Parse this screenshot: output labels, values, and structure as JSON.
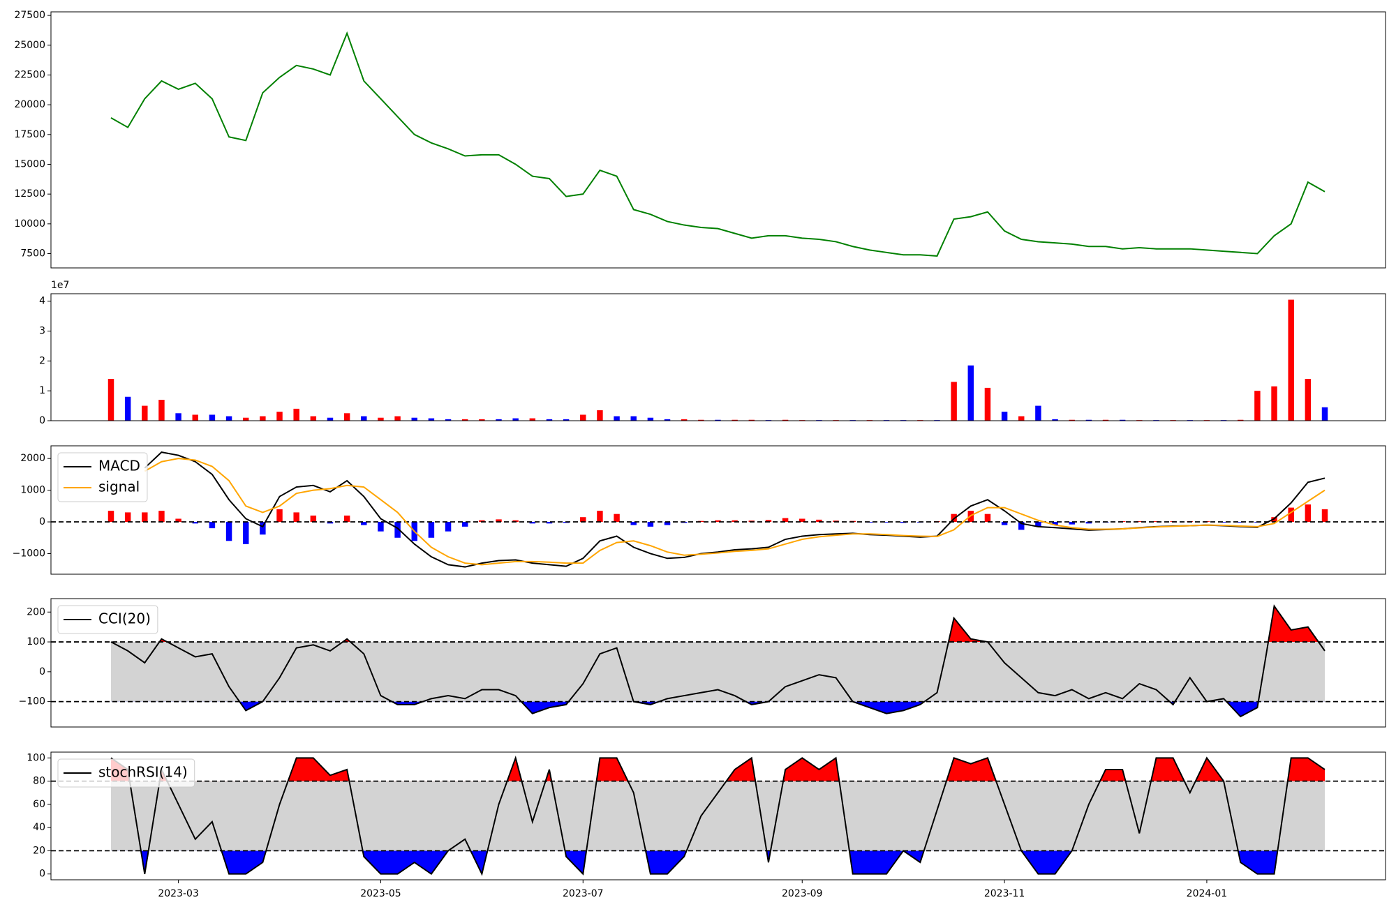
{
  "chart_data": [
    {
      "type": "line",
      "ylim": [
        6300,
        27800
      ],
      "yticks": [
        7500,
        10000,
        12500,
        15000,
        17500,
        20000,
        22500,
        25000,
        27500
      ],
      "series": [
        {
          "color": "green",
          "values": [
            18900,
            18100,
            20500,
            22000,
            21300,
            21800,
            20500,
            17300,
            17000,
            21000,
            22300,
            23300,
            23000,
            22500,
            26000,
            22000,
            20500,
            19000,
            17500,
            16800,
            16300,
            15700,
            15800,
            15800,
            15000,
            14000,
            13800,
            12300,
            12500,
            14500,
            14000,
            11200,
            10800,
            10200,
            9900,
            9700,
            9600,
            9200,
            8800,
            9000,
            9000,
            8800,
            8700,
            8500,
            8100,
            7800,
            7600,
            7400,
            7400,
            7300,
            10400,
            10600,
            11000,
            9400,
            8700,
            8500,
            8400,
            8300,
            8100,
            8100,
            7900,
            8000,
            7900,
            7900,
            7900,
            7800,
            7700,
            7600,
            7500,
            9000,
            10000,
            13500,
            12700
          ]
        }
      ]
    },
    {
      "type": "bar",
      "offset_label": "1e7",
      "ylim": [
        0,
        4.25
      ],
      "yticks": [
        0,
        1,
        2,
        3,
        4
      ],
      "series": [
        {
          "type": "bar",
          "color": "red",
          "values": [
            1.4,
            null,
            0.5,
            0.7,
            null,
            0.2,
            null,
            null,
            0.1,
            0.15,
            0.3,
            0.4,
            0.15,
            null,
            0.25,
            null,
            0.1,
            0.15,
            null,
            null,
            null,
            0.05,
            0.05,
            null,
            null,
            0.08,
            null,
            null,
            0.2,
            0.35,
            null,
            null,
            null,
            null,
            0.05,
            0.03,
            null,
            0.03,
            0.03,
            null,
            0.03,
            0.02,
            null,
            0.02,
            null,
            0.02,
            null,
            null,
            0.02,
            null,
            1.3,
            null,
            1.1,
            null,
            0.15,
            null,
            null,
            0.03,
            null,
            0.03,
            null,
            0.02,
            null,
            0.02,
            null,
            0.02,
            null,
            0.03,
            1.0,
            1.15,
            4.05,
            1.4,
            null
          ]
        },
        {
          "type": "bar",
          "color": "blue",
          "values": [
            null,
            0.8,
            null,
            null,
            0.25,
            null,
            0.2,
            0.15,
            null,
            null,
            null,
            null,
            null,
            0.1,
            null,
            0.15,
            null,
            null,
            0.1,
            0.08,
            0.05,
            null,
            null,
            0.05,
            0.08,
            null,
            0.05,
            0.05,
            null,
            null,
            0.15,
            0.15,
            0.1,
            0.05,
            null,
            null,
            0.03,
            null,
            null,
            0.02,
            null,
            null,
            0.02,
            null,
            0.02,
            null,
            0.02,
            0.02,
            null,
            0.02,
            null,
            1.85,
            null,
            0.3,
            null,
            0.5,
            0.05,
            null,
            0.03,
            null,
            0.03,
            null,
            0.02,
            null,
            0.02,
            null,
            0.02,
            null,
            null,
            null,
            null,
            null,
            0.45
          ]
        }
      ]
    },
    {
      "type": "line",
      "ylim": [
        -1650,
        2400
      ],
      "yticks": [
        {
          "value": -1000,
          "label": "−1000"
        },
        0,
        1000,
        2000
      ],
      "hlines": [
        0
      ],
      "legend": "upper left",
      "series": [
        {
          "type": "bar",
          "color": "red",
          "negative_color": "blue",
          "values": [
            350,
            300,
            300,
            350,
            100,
            -50,
            -200,
            -600,
            -700,
            -400,
            400,
            300,
            200,
            -50,
            200,
            -100,
            -300,
            -500,
            -600,
            -500,
            -300,
            -150,
            50,
            80,
            50,
            -50,
            -50,
            -30,
            150,
            350,
            250,
            -100,
            -150,
            -100,
            -30,
            30,
            50,
            50,
            40,
            60,
            120,
            100,
            70,
            40,
            30,
            -20,
            -20,
            -30,
            -20,
            20,
            250,
            350,
            250,
            -100,
            -250,
            -150,
            -100,
            -80,
            -50,
            -20,
            20,
            20,
            20,
            20,
            20,
            20,
            -20,
            -20,
            -20,
            150,
            450,
            550,
            400
          ]
        },
        {
          "name": "MACD",
          "color": "black",
          "values": [
            null,
            null,
            1700,
            2200,
            2100,
            1900,
            1500,
            700,
            100,
            -150,
            800,
            1100,
            1150,
            950,
            1300,
            800,
            100,
            -200,
            -700,
            -1100,
            -1350,
            -1420,
            -1300,
            -1220,
            -1200,
            -1300,
            -1350,
            -1400,
            -1150,
            -600,
            -450,
            -800,
            -1000,
            -1150,
            -1120,
            -1000,
            -950,
            -880,
            -850,
            -800,
            -550,
            -450,
            -400,
            -380,
            -360,
            -400,
            -420,
            -450,
            -480,
            -450,
            100,
            500,
            700,
            350,
            -50,
            -150,
            -180,
            -220,
            -260,
            -240,
            -220,
            -180,
            -150,
            -130,
            -120,
            -100,
            -120,
            -150,
            -170,
            100,
            600,
            1250,
            1380
          ]
        },
        {
          "name": "signal",
          "color": "orange",
          "values": [
            null,
            null,
            1600,
            1900,
            2000,
            1950,
            1750,
            1300,
            500,
            300,
            500,
            900,
            1000,
            1050,
            1150,
            1100,
            700,
            300,
            -300,
            -800,
            -1100,
            -1300,
            -1350,
            -1300,
            -1250,
            -1250,
            -1270,
            -1300,
            -1300,
            -900,
            -650,
            -600,
            -750,
            -950,
            -1050,
            -1020,
            -980,
            -930,
            -900,
            -850,
            -700,
            -550,
            -470,
            -420,
            -380,
            -380,
            -400,
            -430,
            -450,
            -460,
            -250,
            200,
            450,
            450,
            250,
            50,
            -100,
            -180,
            -230,
            -230,
            -220,
            -190,
            -160,
            -140,
            -120,
            -100,
            -110,
            -130,
            -150,
            -50,
            300,
            650,
            1000
          ]
        }
      ]
    },
    {
      "type": "band",
      "ylim": [
        -185,
        245
      ],
      "yticks": [
        {
          "value": -100,
          "label": "−100"
        },
        0,
        100,
        200
      ],
      "hlines": [
        100,
        -100
      ],
      "legend": "upper left",
      "band_color": "lightgray",
      "upper_color": "red",
      "lower_color": "blue",
      "series": [
        {
          "name": "CCI(20)",
          "color": "black",
          "values": [
            100,
            70,
            30,
            110,
            80,
            50,
            60,
            -50,
            -130,
            -100,
            -20,
            80,
            90,
            70,
            110,
            60,
            -80,
            -110,
            -110,
            -90,
            -80,
            -90,
            -60,
            -60,
            -80,
            -140,
            -120,
            -110,
            -40,
            60,
            80,
            -100,
            -110,
            -90,
            -80,
            -70,
            -60,
            -80,
            -110,
            -100,
            -50,
            -30,
            -10,
            -20,
            -100,
            -120,
            -140,
            -130,
            -110,
            -70,
            180,
            110,
            100,
            30,
            -20,
            -70,
            -80,
            -60,
            -90,
            -70,
            -90,
            -40,
            -60,
            -110,
            -20,
            -100,
            -90,
            -150,
            -120,
            220,
            140,
            150,
            70
          ]
        }
      ]
    },
    {
      "type": "band",
      "ylim": [
        -5,
        105
      ],
      "yticks": [
        0,
        20,
        40,
        60,
        80,
        100
      ],
      "hlines": [
        80,
        20
      ],
      "legend": "upper left",
      "band_color": "lightgray",
      "upper_color": "red",
      "lower_color": "blue",
      "categories": [
        null,
        null,
        null,
        null,
        "2023-03",
        null,
        null,
        null,
        null,
        null,
        null,
        null,
        null,
        null,
        null,
        null,
        "2023-05",
        null,
        null,
        null,
        null,
        null,
        null,
        null,
        null,
        null,
        null,
        null,
        "2023-07",
        null,
        null,
        null,
        null,
        null,
        null,
        null,
        null,
        null,
        null,
        null,
        null,
        "2023-09",
        null,
        null,
        null,
        null,
        null,
        null,
        null,
        null,
        null,
        null,
        null,
        "2023-11",
        null,
        null,
        null,
        null,
        null,
        null,
        null,
        null,
        null,
        null,
        null,
        "2024-01",
        null,
        null,
        null,
        null,
        null,
        null,
        null
      ],
      "series": [
        {
          "name": "stochRSI(14)",
          "color": "black",
          "values": [
            100,
            90,
            0,
            90,
            60,
            30,
            45,
            0,
            0,
            10,
            60,
            100,
            100,
            85,
            90,
            15,
            0,
            0,
            10,
            0,
            20,
            30,
            0,
            60,
            100,
            45,
            90,
            15,
            0,
            100,
            100,
            70,
            0,
            0,
            15,
            50,
            70,
            90,
            100,
            10,
            90,
            100,
            90,
            100,
            0,
            0,
            0,
            20,
            10,
            55,
            100,
            95,
            100,
            60,
            20,
            0,
            0,
            20,
            60,
            90,
            90,
            35,
            100,
            100,
            70,
            100,
            80,
            10,
            0,
            0,
            100,
            100,
            90
          ]
        }
      ]
    }
  ]
}
